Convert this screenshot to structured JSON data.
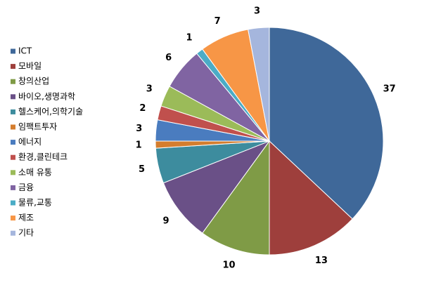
{
  "chart_data": {
    "type": "pie",
    "categories": [
      "ICT",
      "모바일",
      "창의산업",
      "바이오,생명과학",
      "헬스케어,의학기술",
      "임팩트투자",
      "에너지",
      "환경,클린테크",
      "소매 유통",
      "금융",
      "물류,교통",
      "제조",
      "기타"
    ],
    "values": [
      37,
      13,
      10,
      9,
      5,
      1,
      3,
      2,
      3,
      6,
      1,
      7,
      3
    ],
    "colors": [
      "#3f6899",
      "#9e3f3c",
      "#7f9b46",
      "#6a5087",
      "#3d8c9e",
      "#d47d2e",
      "#4a7cbf",
      "#c0504d",
      "#9bbb59",
      "#8064a2",
      "#4bacc6",
      "#f79646",
      "#a5b6dd"
    ],
    "legend": "left"
  }
}
